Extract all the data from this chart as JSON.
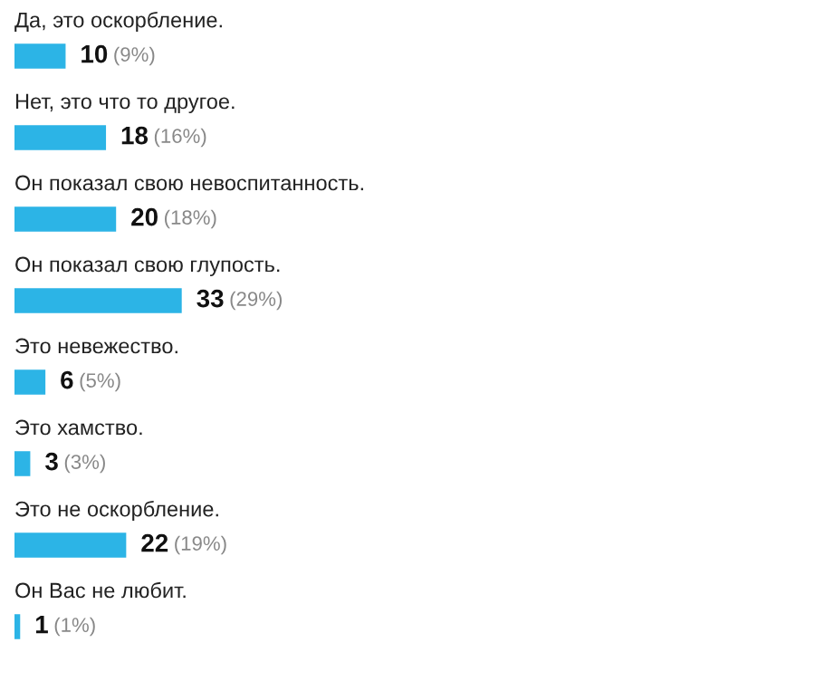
{
  "chart_data": {
    "type": "bar",
    "orientation": "horizontal",
    "tick_labels": false,
    "grid": false,
    "categories": [
      "Да, это оскорбление.",
      "Нет, это что то другое.",
      "Он показал свою невоспитанность.",
      "Он показал свою глупость.",
      "Это невежество.",
      "Это хамство.",
      "Это не оскорбление.",
      "Он Вас не любит."
    ],
    "values": [
      10,
      18,
      20,
      33,
      6,
      3,
      22,
      1
    ],
    "value_labels": [
      "10 (9%)",
      "18 (16%)",
      "20 (18%)",
      "33 (29%)",
      "6 (5%)",
      "3 (3%)",
      "22 (19%)",
      "1 (1%)"
    ],
    "color": "#2cb4e6"
  }
}
